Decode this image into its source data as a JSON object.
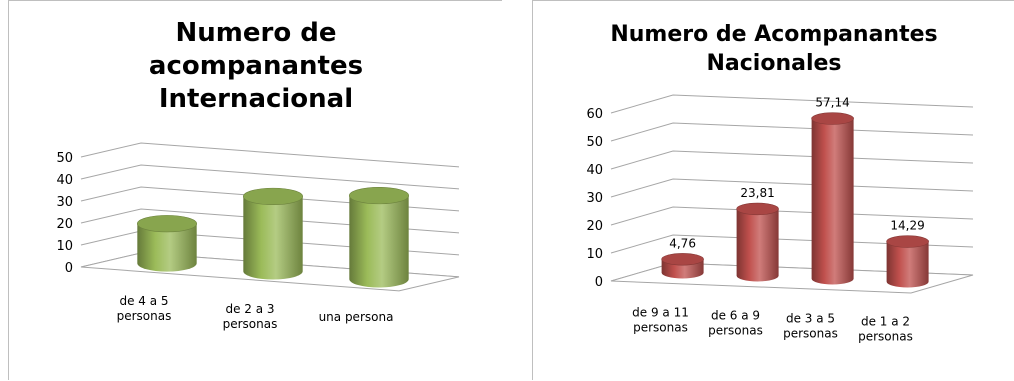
{
  "chart_data": [
    {
      "type": "bar",
      "style": "3d-cylinder",
      "title_lines": [
        "Numero de",
        "acompanantes",
        "Internacional"
      ],
      "categories": [
        [
          "de 4 a 5",
          "personas"
        ],
        [
          "de 2 a 3",
          "personas"
        ],
        [
          "una persona"
        ]
      ],
      "values": [
        18,
        34,
        38
      ],
      "yticks": [
        "0",
        "10",
        "20",
        "30",
        "40",
        "50"
      ],
      "ylim": [
        0,
        50
      ],
      "grid": true,
      "legend": false,
      "bar_color": "#9bbb59",
      "data_labels": []
    },
    {
      "type": "bar",
      "style": "3d-cylinder",
      "title_lines": [
        "Numero de Acompanantes",
        "Nacionales"
      ],
      "categories": [
        [
          "de 9 a 11",
          "personas"
        ],
        [
          "de 6 a 9",
          "personas"
        ],
        [
          "de 3 a 5",
          "personas"
        ],
        [
          "de 1 a 2",
          "personas"
        ]
      ],
      "values": [
        4.76,
        23.81,
        57.14,
        14.29
      ],
      "yticks": [
        "0",
        "10",
        "20",
        "30",
        "40",
        "50",
        "60"
      ],
      "ylim": [
        0,
        60
      ],
      "grid": true,
      "legend": false,
      "bar_color": "#c0504d",
      "data_labels": [
        "4,76",
        "23,81",
        "57,14",
        "14,29"
      ]
    }
  ]
}
